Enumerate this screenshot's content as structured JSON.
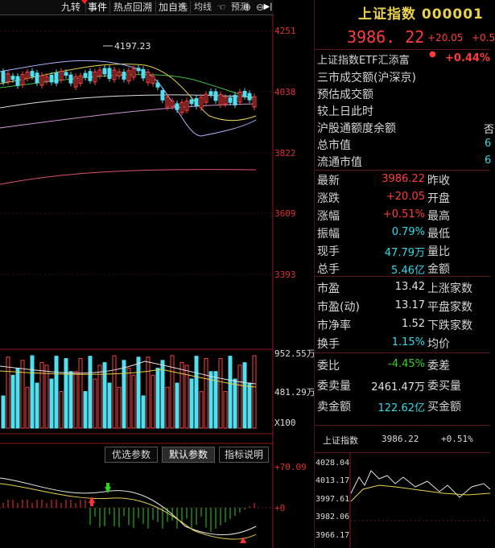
{
  "toolbar": {
    "items": [
      "九转",
      "事件",
      "热点回溯",
      "加自选",
      "均线",
      "预测"
    ],
    "active": "事件"
  },
  "chart": {
    "price_axis": [
      "4251",
      "4038",
      "3822",
      "3609",
      "3393"
    ],
    "high_label": "4197.23",
    "volume_axis": [
      "952.55万",
      "481.29万",
      "X100"
    ],
    "indicator_axis": [
      "+70.09",
      "+0"
    ],
    "indicator_tabs": [
      "优选参数",
      "默认参数",
      "指标说明"
    ],
    "indicator_selected": "默认参数"
  },
  "quote": {
    "title": "上证指数 000001",
    "price": "3986. 22",
    "change": "+20.05",
    "change_pct": "+0.5",
    "etf_label": "上证指数ETF汇添富",
    "etf_change": "+0.44%",
    "info_rows": [
      "三市成交额(沪深京)",
      "预估成交额",
      "较上日此时",
      "沪股通额度余额",
      "总市值",
      "流通市值"
    ],
    "info_tail": [
      "否",
      "6",
      "6"
    ],
    "stats": [
      {
        "label": "最新",
        "value": "3986.22",
        "label2": "昨收",
        "color": "r"
      },
      {
        "label": "涨跌",
        "value": "+20.05",
        "label2": "开盘",
        "color": "r"
      },
      {
        "label": "涨幅",
        "value": "+0.51%",
        "label2": "最高",
        "color": "r"
      },
      {
        "label": "振幅",
        "value": "0.79%",
        "label2": "最低",
        "color": "c"
      },
      {
        "label": "现手",
        "value": "47.79万",
        "label2": "量比",
        "color": "c"
      },
      {
        "label": "总手",
        "value": "5.46亿",
        "label2": "金额",
        "color": "c"
      },
      {
        "label": "市盈",
        "value": "13.42",
        "label2": "上涨家数",
        "color": "w"
      },
      {
        "label": "市盈(动)",
        "value": "13.17",
        "label2": "平盘家数",
        "color": "w"
      },
      {
        "label": "市净率",
        "value": "1.52",
        "label2": "下跌家数",
        "color": "w"
      },
      {
        "label": "换手",
        "value": "1.15%",
        "label2": "均价",
        "color": "c"
      },
      {
        "label": "委比",
        "value": "-4.45%",
        "label2": "委差",
        "color": "g"
      },
      {
        "label": "委卖量",
        "value": "2461.47万",
        "label2": "委买量",
        "color": "w"
      },
      {
        "label": "卖金额",
        "value": "122.62亿",
        "label2": "买金额",
        "color": "c"
      }
    ],
    "mini": {
      "name": "上证指数",
      "price": "3986.22",
      "pct": "+0.51%",
      "ticks": [
        "4028.04",
        "4013.17",
        "3997.61",
        "3982.06",
        "3966.17"
      ]
    }
  }
}
